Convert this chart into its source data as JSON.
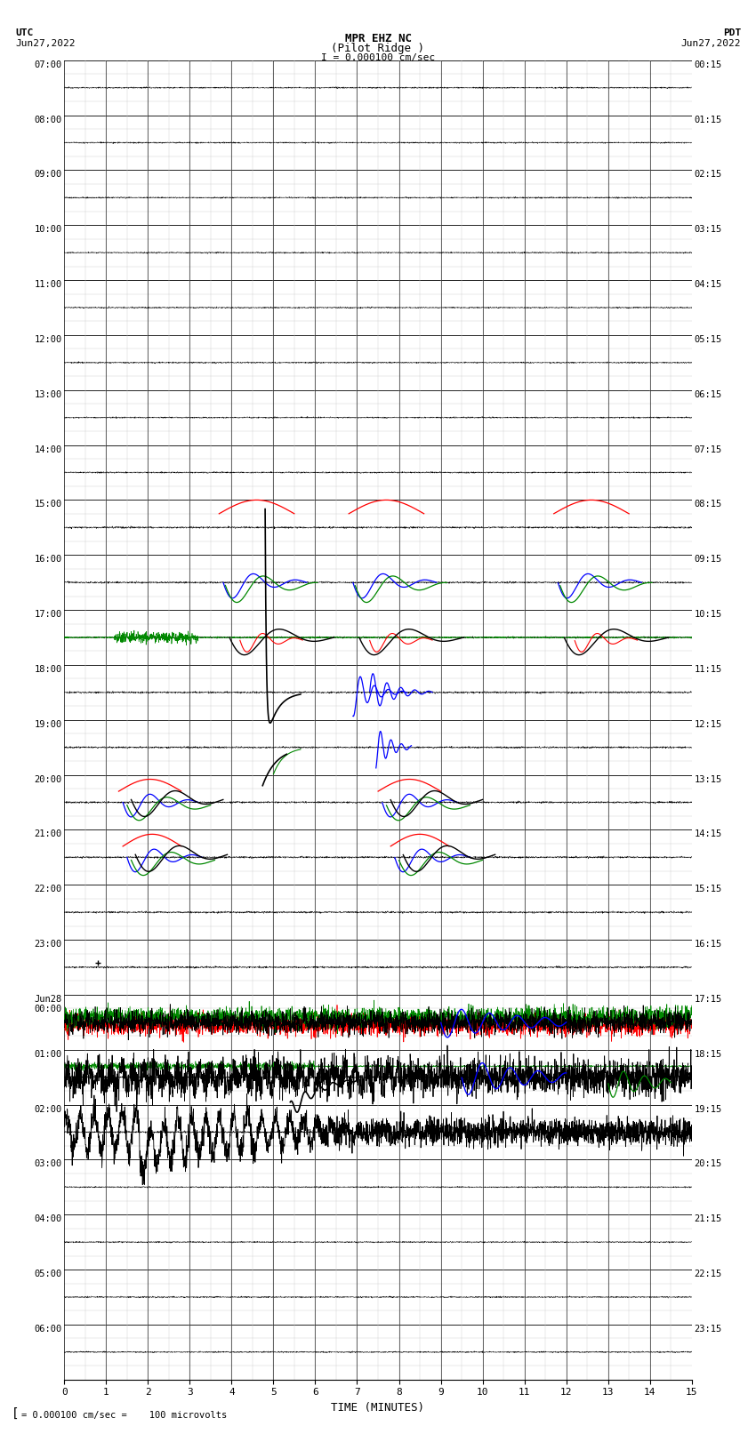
{
  "title_line1": "MPR EHZ NC",
  "title_line2": "(Pilot Ridge )",
  "scale_label": "I = 0.000100 cm/sec",
  "left_label_top": "UTC",
  "left_label_date": "Jun27,2022",
  "right_label_top": "PDT",
  "right_label_date": "Jun27,2022",
  "bottom_label": "TIME (MINUTES)",
  "footnote": "= 0.000100 cm/sec =    100 microvolts",
  "utc_labels": [
    "07:00",
    "08:00",
    "09:00",
    "10:00",
    "11:00",
    "12:00",
    "13:00",
    "14:00",
    "15:00",
    "16:00",
    "17:00",
    "18:00",
    "19:00",
    "20:00",
    "21:00",
    "22:00",
    "23:00",
    "Jun28\n00:00",
    "01:00",
    "02:00",
    "03:00",
    "04:00",
    "05:00",
    "06:00"
  ],
  "pdt_labels": [
    "00:15",
    "01:15",
    "02:15",
    "03:15",
    "04:15",
    "05:15",
    "06:15",
    "07:15",
    "08:15",
    "09:15",
    "10:15",
    "11:15",
    "12:15",
    "13:15",
    "14:15",
    "15:15",
    "16:15",
    "17:15",
    "18:15",
    "19:15",
    "20:15",
    "21:15",
    "22:15",
    "23:15"
  ],
  "n_rows": 24,
  "x_min": 0,
  "x_max": 15,
  "minor_per_row": 4,
  "bg_color": "#ffffff",
  "grid_major_color": "#000000",
  "grid_minor_color": "#cccccc"
}
